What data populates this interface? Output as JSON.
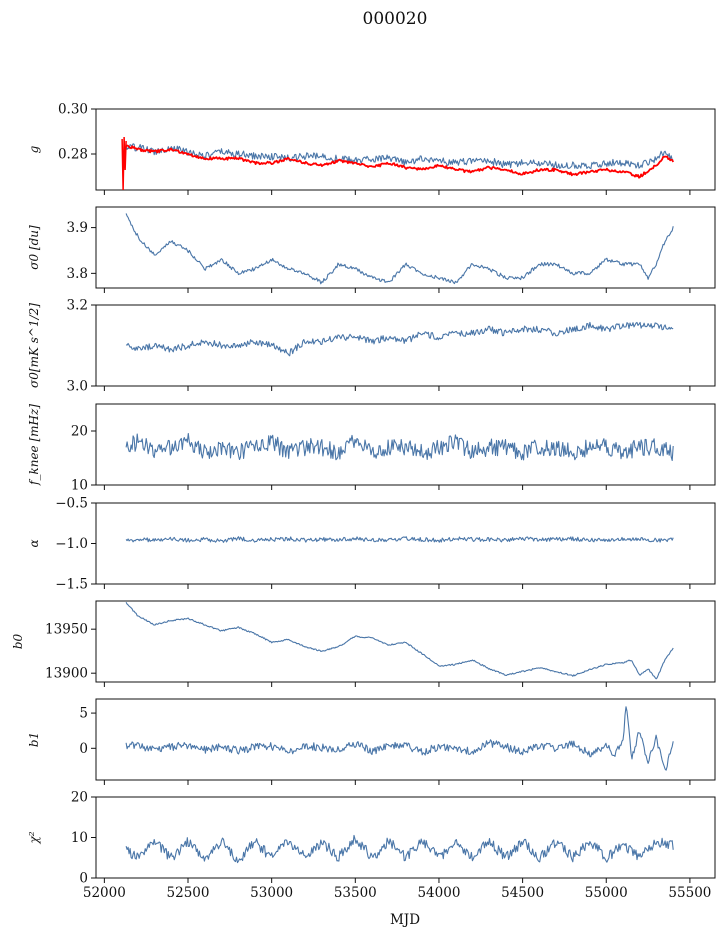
{
  "figure": {
    "title": "000020"
  },
  "colors": {
    "series": "#4a76a8",
    "model": "#ff0000",
    "axes": "#111111"
  },
  "chart_data": [
    {
      "type": "line",
      "ylabel": "g",
      "ylim": [
        0.264,
        0.3
      ],
      "yticks": [
        0.28,
        0.3
      ],
      "yticklabels": [
        "0.28",
        "0.30"
      ],
      "xlim": [
        51950,
        55650
      ],
      "x": [
        52130,
        52200,
        52300,
        52400,
        52500,
        52600,
        52700,
        52800,
        52900,
        53000,
        53100,
        53200,
        53300,
        53400,
        53500,
        53600,
        53700,
        53800,
        53900,
        54000,
        54100,
        54200,
        54300,
        54400,
        54500,
        54600,
        54700,
        54800,
        54900,
        55000,
        55100,
        55200,
        55300,
        55350,
        55400
      ],
      "series": [
        {
          "values": [
            0.283,
            0.283,
            0.281,
            0.283,
            0.281,
            0.279,
            0.281,
            0.28,
            0.279,
            0.279,
            0.278,
            0.279,
            0.279,
            0.278,
            0.277,
            0.278,
            0.278,
            0.276,
            0.278,
            0.277,
            0.276,
            0.277,
            0.277,
            0.275,
            0.276,
            0.276,
            0.275,
            0.275,
            0.275,
            0.276,
            0.276,
            0.275,
            0.278,
            0.281,
            0.278
          ]
        },
        {
          "values": [
            0.284,
            0.282,
            0.281,
            0.282,
            0.28,
            0.278,
            0.278,
            0.278,
            0.276,
            0.276,
            0.278,
            0.276,
            0.275,
            0.277,
            0.276,
            0.274,
            0.276,
            0.274,
            0.273,
            0.275,
            0.273,
            0.272,
            0.274,
            0.273,
            0.271,
            0.273,
            0.273,
            0.271,
            0.272,
            0.273,
            0.272,
            0.27,
            0.275,
            0.279,
            0.277
          ]
        }
      ]
    },
    {
      "type": "line",
      "ylabel": "σ0 [du]",
      "ylim": [
        3.768,
        3.945
      ],
      "yticks": [
        3.8,
        3.9
      ],
      "yticklabels": [
        "3.8",
        "3.9"
      ],
      "xlim": [
        51950,
        55650
      ],
      "x": [
        52130,
        52200,
        52300,
        52400,
        52500,
        52600,
        52700,
        52800,
        52900,
        53000,
        53100,
        53200,
        53300,
        53400,
        53500,
        53600,
        53700,
        53800,
        53900,
        54000,
        54100,
        54200,
        54300,
        54400,
        54500,
        54600,
        54700,
        54800,
        54900,
        55000,
        55100,
        55200,
        55250,
        55300,
        55350,
        55400
      ],
      "series": [
        {
          "values": [
            3.93,
            3.88,
            3.84,
            3.87,
            3.85,
            3.81,
            3.83,
            3.8,
            3.81,
            3.83,
            3.81,
            3.8,
            3.78,
            3.82,
            3.81,
            3.79,
            3.78,
            3.82,
            3.8,
            3.79,
            3.78,
            3.82,
            3.81,
            3.79,
            3.79,
            3.82,
            3.82,
            3.8,
            3.8,
            3.83,
            3.82,
            3.82,
            3.79,
            3.82,
            3.87,
            3.9
          ]
        }
      ]
    },
    {
      "type": "line",
      "ylabel": "σ0[mK s^1/2]",
      "ylim": [
        3.0,
        3.2
      ],
      "yticks": [
        3.0,
        3.2
      ],
      "yticklabels": [
        "3.0",
        "3.2"
      ],
      "xlim": [
        51950,
        55650
      ],
      "x": [
        52130,
        52200,
        52300,
        52400,
        52500,
        52600,
        52700,
        52800,
        52900,
        53000,
        53100,
        53200,
        53300,
        53400,
        53500,
        53600,
        53700,
        53800,
        53900,
        54000,
        54100,
        54200,
        54300,
        54400,
        54500,
        54600,
        54700,
        54800,
        54900,
        55000,
        55100,
        55200,
        55300,
        55400
      ],
      "series": [
        {
          "values": [
            3.1,
            3.09,
            3.1,
            3.09,
            3.1,
            3.11,
            3.1,
            3.1,
            3.11,
            3.1,
            3.08,
            3.11,
            3.11,
            3.12,
            3.12,
            3.11,
            3.12,
            3.11,
            3.13,
            3.12,
            3.13,
            3.13,
            3.14,
            3.13,
            3.14,
            3.14,
            3.13,
            3.14,
            3.15,
            3.14,
            3.15,
            3.15,
            3.15,
            3.14
          ]
        }
      ]
    },
    {
      "type": "line",
      "ylabel": "f_knee [mHz]",
      "ylim": [
        10,
        25
      ],
      "yticks": [
        10,
        20
      ],
      "yticklabels": [
        "10",
        "20"
      ],
      "xlim": [
        51950,
        55650
      ],
      "x": [
        52130,
        52200,
        52300,
        52400,
        52500,
        52600,
        52700,
        52800,
        52900,
        53000,
        53100,
        53200,
        53300,
        53400,
        53500,
        53600,
        53700,
        53800,
        53900,
        54000,
        54100,
        54200,
        54300,
        54400,
        54500,
        54600,
        54700,
        54800,
        54900,
        55000,
        55100,
        55200,
        55300,
        55400
      ],
      "series": [
        {
          "values": [
            17,
            18,
            16,
            17,
            18,
            16,
            17,
            16,
            17,
            18,
            16,
            17,
            17,
            16,
            18,
            16,
            17,
            17,
            16,
            17,
            18,
            16,
            17,
            17,
            16,
            17,
            17,
            16,
            17,
            17,
            16,
            17,
            17,
            16
          ]
        }
      ]
    },
    {
      "type": "line",
      "ylabel": "α",
      "ylim": [
        -1.5,
        -0.5
      ],
      "yticks": [
        -1.5,
        -1.0,
        -0.5
      ],
      "yticklabels": [
        "−1.5",
        "−1.0",
        "−0.5"
      ],
      "xlim": [
        51950,
        55650
      ],
      "x": [
        52130,
        52200,
        52300,
        52400,
        52500,
        52600,
        52700,
        52800,
        52900,
        53000,
        53100,
        53200,
        53300,
        53400,
        53500,
        53600,
        53700,
        53800,
        53900,
        54000,
        54100,
        54200,
        54300,
        54400,
        54500,
        54600,
        54700,
        54800,
        54900,
        55000,
        55100,
        55200,
        55300,
        55400
      ],
      "series": [
        {
          "values": [
            -0.97,
            -0.95,
            -0.96,
            -0.94,
            -0.96,
            -0.95,
            -0.97,
            -0.94,
            -0.96,
            -0.95,
            -0.94,
            -0.96,
            -0.95,
            -0.95,
            -0.94,
            -0.96,
            -0.95,
            -0.94,
            -0.95,
            -0.96,
            -0.94,
            -0.95,
            -0.95,
            -0.96,
            -0.94,
            -0.95,
            -0.95,
            -0.94,
            -0.96,
            -0.95,
            -0.95,
            -0.94,
            -0.96,
            -0.95
          ]
        }
      ]
    },
    {
      "type": "line",
      "ylabel": "b0",
      "ylim": [
        13890,
        13982
      ],
      "yticks": [
        13900,
        13950
      ],
      "yticklabels": [
        "13900",
        "13950"
      ],
      "xlim": [
        51950,
        55650
      ],
      "x": [
        52130,
        52200,
        52300,
        52400,
        52500,
        52600,
        52700,
        52800,
        52900,
        53000,
        53100,
        53200,
        53300,
        53400,
        53500,
        53600,
        53700,
        53800,
        53900,
        54000,
        54100,
        54200,
        54300,
        54400,
        54500,
        54600,
        54700,
        54800,
        54900,
        55000,
        55100,
        55150,
        55200,
        55250,
        55300,
        55350,
        55400
      ],
      "series": [
        {
          "values": [
            13980,
            13965,
            13955,
            13960,
            13962,
            13955,
            13948,
            13952,
            13945,
            13935,
            13938,
            13930,
            13925,
            13930,
            13942,
            13940,
            13932,
            13935,
            13922,
            13908,
            13910,
            13915,
            13905,
            13898,
            13902,
            13906,
            13902,
            13897,
            13904,
            13910,
            13912,
            13915,
            13898,
            13905,
            13893,
            13915,
            13928
          ]
        }
      ]
    },
    {
      "type": "line",
      "ylabel": "b1",
      "ylim": [
        -4.5,
        7
      ],
      "yticks": [
        0,
        5
      ],
      "yticklabels": [
        "0",
        "5"
      ],
      "xlim": [
        51950,
        55650
      ],
      "x": [
        52130,
        52200,
        52300,
        52400,
        52500,
        52600,
        52700,
        52800,
        52900,
        53000,
        53100,
        53200,
        53300,
        53400,
        53500,
        53600,
        53700,
        53800,
        53900,
        54000,
        54100,
        54200,
        54300,
        54400,
        54500,
        54600,
        54700,
        54800,
        54900,
        55000,
        55050,
        55100,
        55120,
        55150,
        55200,
        55250,
        55300,
        55350,
        55400
      ],
      "series": [
        {
          "values": [
            0.3,
            0.5,
            -0.3,
            0.2,
            0.4,
            -0.2,
            0.3,
            -0.4,
            0.2,
            0.3,
            -0.5,
            0.4,
            0.1,
            -0.3,
            0.6,
            -0.4,
            0.2,
            0.5,
            -0.6,
            0.3,
            0.1,
            -0.5,
            0.8,
            0.2,
            -0.6,
            0.4,
            0.0,
            0.6,
            -0.8,
            0.5,
            -1.0,
            1.2,
            6.2,
            -1.5,
            2.5,
            -2.0,
            1.5,
            -3.2,
            0.5
          ]
        }
      ]
    },
    {
      "type": "line",
      "ylabel": "χ²",
      "ylim": [
        0,
        20
      ],
      "yticks": [
        0,
        10,
        20
      ],
      "yticklabels": [
        "0",
        "10",
        "20"
      ],
      "xlabel": "MJD",
      "xticks": [
        52000,
        52500,
        53000,
        53500,
        54000,
        54500,
        55000,
        55500
      ],
      "xticklabels": [
        "52000",
        "52500",
        "53000",
        "53500",
        "54000",
        "54500",
        "55000",
        "55500"
      ],
      "xlim": [
        51950,
        55650
      ],
      "x": [
        52130,
        52200,
        52300,
        52400,
        52500,
        52600,
        52700,
        52800,
        52900,
        53000,
        53100,
        53200,
        53300,
        53400,
        53500,
        53600,
        53700,
        53800,
        53900,
        54000,
        54100,
        54200,
        54300,
        54400,
        54500,
        54600,
        54700,
        54800,
        54900,
        55000,
        55100,
        55200,
        55300,
        55400
      ],
      "series": [
        {
          "values": [
            7,
            5,
            9,
            5,
            9,
            5,
            9,
            4,
            9,
            5,
            9,
            5,
            9,
            5,
            10,
            5,
            9,
            5,
            9,
            5,
            9,
            5,
            9,
            5,
            9,
            5,
            9,
            5,
            9,
            5,
            8,
            5,
            9,
            8
          ]
        }
      ]
    }
  ]
}
